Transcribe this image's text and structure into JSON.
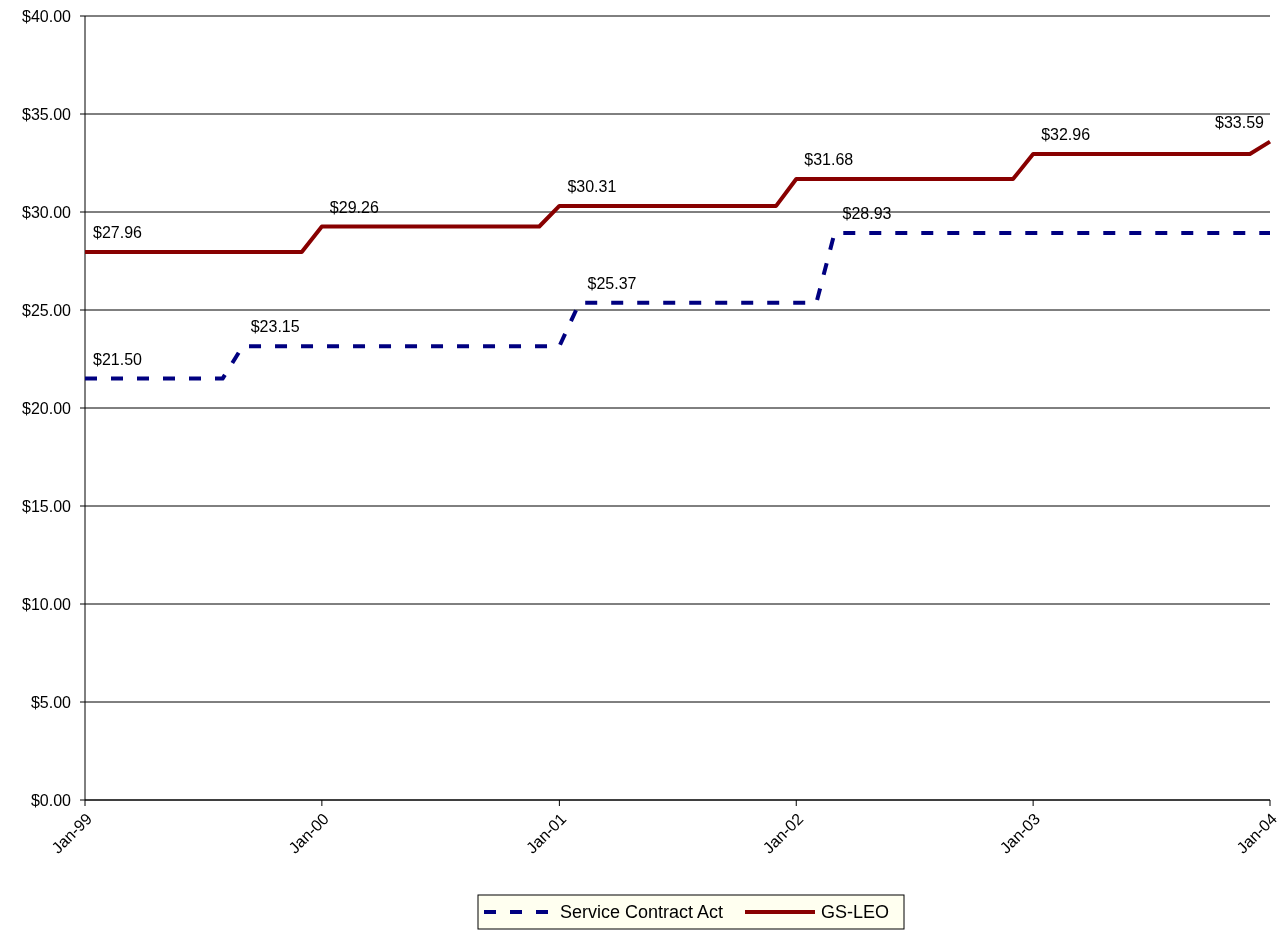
{
  "chart_data": {
    "type": "line",
    "xlim": [
      "1999-01",
      "2004-01"
    ],
    "ylim": [
      0,
      40
    ],
    "xticks": [
      {
        "value": "1999-01",
        "label": "Jan-99"
      },
      {
        "value": "2000-01",
        "label": "Jan-00"
      },
      {
        "value": "2001-01",
        "label": "Jan-01"
      },
      {
        "value": "2002-01",
        "label": "Jan-02"
      },
      {
        "value": "2003-01",
        "label": "Jan-03"
      },
      {
        "value": "2004-01",
        "label": "Jan-04"
      }
    ],
    "yticks": [
      {
        "value": 0,
        "label": "$0.00"
      },
      {
        "value": 5,
        "label": "$5.00"
      },
      {
        "value": 10,
        "label": "$10.00"
      },
      {
        "value": 15,
        "label": "$15.00"
      },
      {
        "value": 20,
        "label": "$20.00"
      },
      {
        "value": 25,
        "label": "$25.00"
      },
      {
        "value": 30,
        "label": "$30.00"
      },
      {
        "value": 35,
        "label": "$35.00"
      },
      {
        "value": 40,
        "label": "$40.00"
      }
    ],
    "grid": "y",
    "legend": "bottom",
    "series": [
      {
        "name": "Service Contract Act",
        "color": "#000080",
        "line_style": "dashed",
        "x": [
          "1999-01",
          "1999-08",
          "1999-09",
          "2001-01",
          "2001-02",
          "2002-02",
          "2002-03",
          "2004-01"
        ],
        "values": [
          21.5,
          21.5,
          23.15,
          23.15,
          25.37,
          25.37,
          28.93,
          28.93
        ],
        "value_labels": [
          "$21.50",
          null,
          "$23.15",
          null,
          "$25.37",
          null,
          "$28.93",
          null
        ]
      },
      {
        "name": "GS-LEO",
        "color": "#880000",
        "line_style": "solid",
        "x": [
          "1999-01",
          "1999-12",
          "2000-01",
          "2000-12",
          "2001-01",
          "2001-12",
          "2002-01",
          "2002-12",
          "2003-01",
          "2003-12",
          "2004-01"
        ],
        "values": [
          27.96,
          27.96,
          29.26,
          29.26,
          30.31,
          30.31,
          31.68,
          31.68,
          32.96,
          32.96,
          33.59
        ],
        "value_labels": [
          "$27.96",
          null,
          "$29.26",
          null,
          "$30.31",
          null,
          "$31.68",
          null,
          "$32.96",
          null,
          "$33.59"
        ]
      }
    ]
  }
}
